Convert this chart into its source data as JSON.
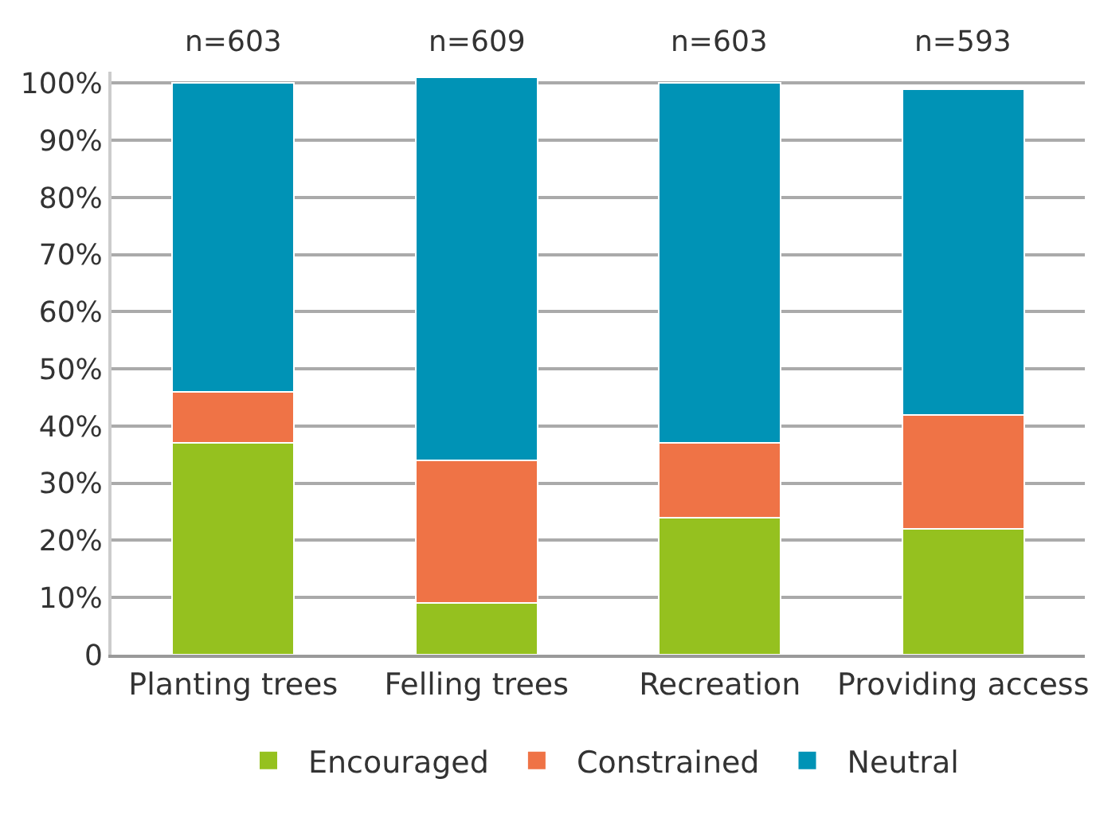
{
  "chart_data": {
    "type": "bar",
    "stacked": true,
    "categories": [
      "Planting trees",
      "Felling trees",
      "Recreation",
      "Providing access"
    ],
    "series": [
      {
        "name": "Encouraged",
        "color": "#95c11f",
        "values": [
          37,
          9,
          24,
          22
        ]
      },
      {
        "name": "Constrained",
        "color": "#ef7346",
        "values": [
          9,
          25,
          13,
          20
        ]
      },
      {
        "name": "Neutral",
        "color": "#0093b6",
        "values": [
          54,
          67,
          63,
          57
        ]
      }
    ],
    "annotations": [
      "n=603",
      "n=609",
      "n=603",
      "n=593"
    ],
    "ylim": [
      0,
      102
    ],
    "yticks": [
      0,
      {
        "value": 10,
        "label": "10%"
      },
      {
        "value": 20,
        "label": "20%"
      },
      {
        "value": 30,
        "label": "30%"
      },
      {
        "value": 40,
        "label": "40%"
      },
      {
        "value": 50,
        "label": "50%"
      },
      {
        "value": 60,
        "label": "60%"
      },
      {
        "value": 70,
        "label": "70%"
      },
      {
        "value": 80,
        "label": "80%"
      },
      {
        "value": 90,
        "label": "90%"
      },
      {
        "value": 100,
        "label": "100%"
      }
    ],
    "grid": "y",
    "legend": "bottom"
  }
}
